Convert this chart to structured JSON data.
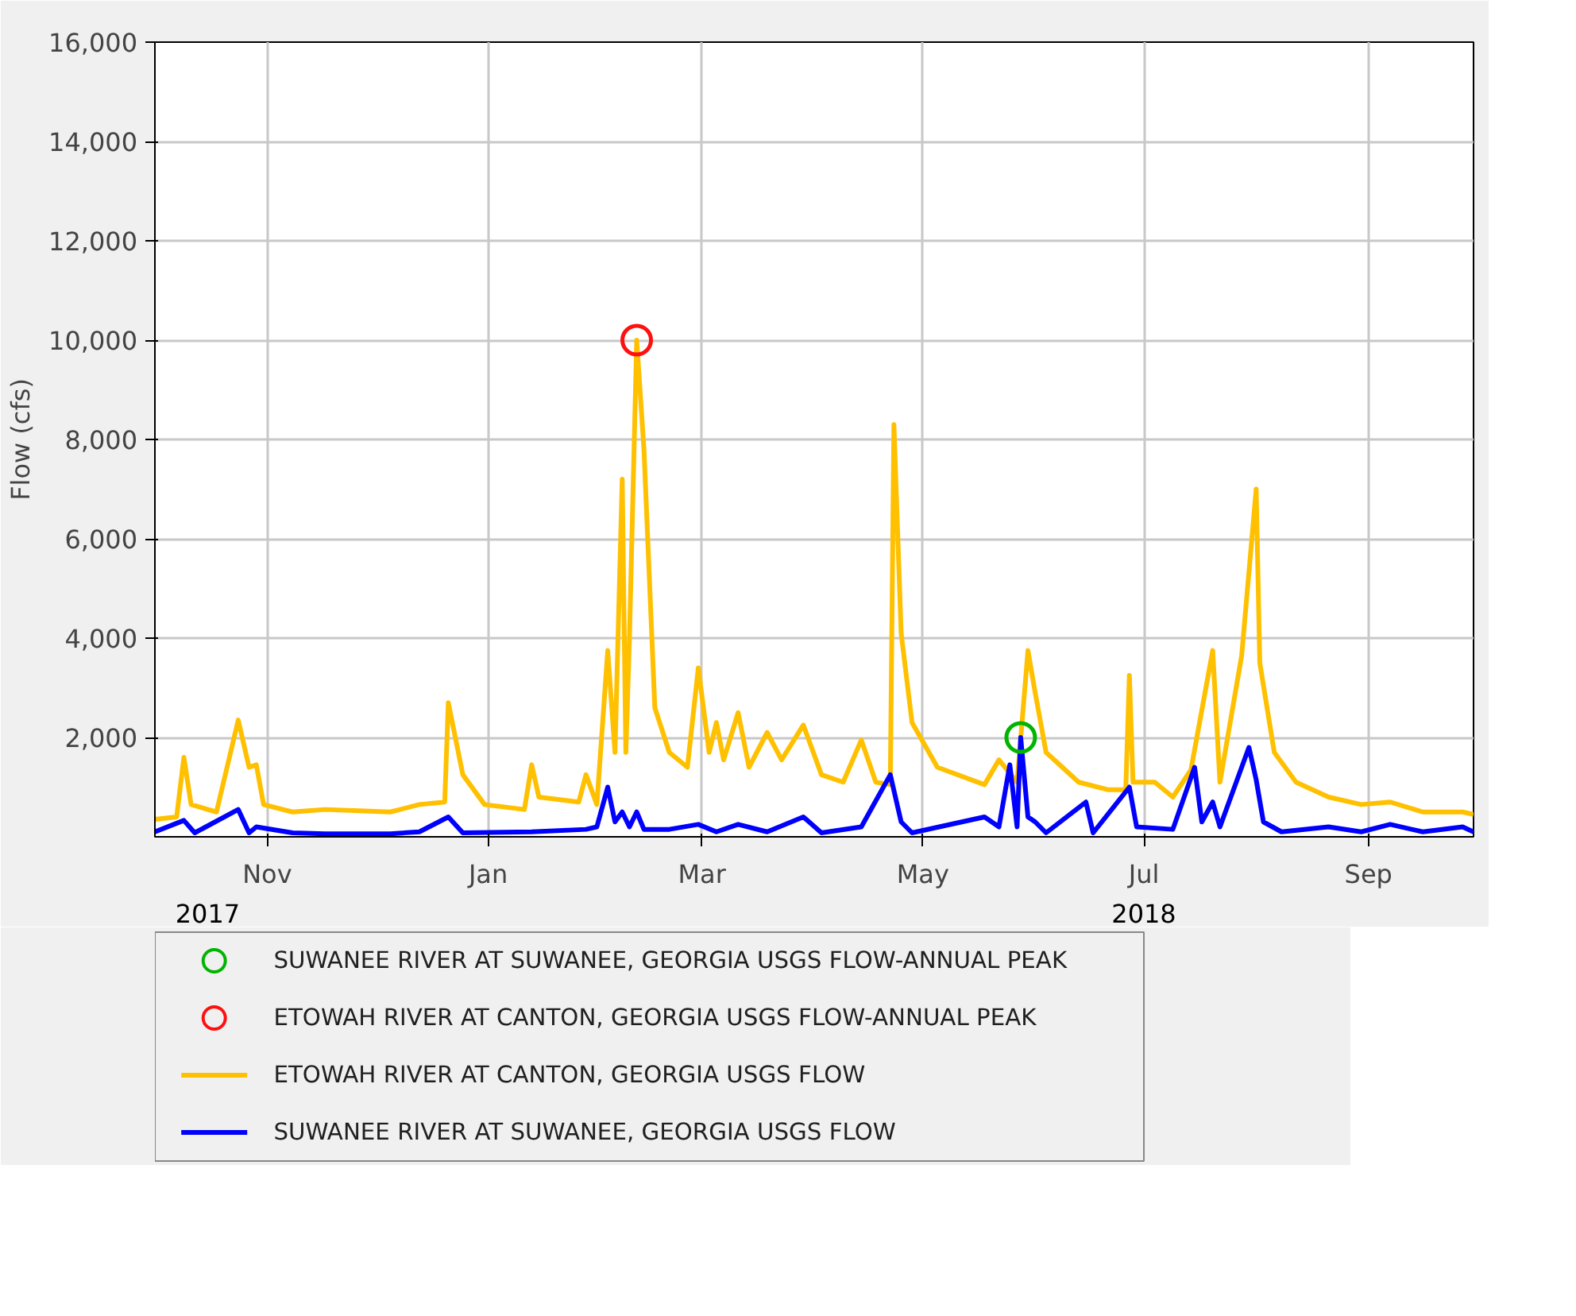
{
  "chart_data": {
    "type": "line",
    "ylabel": "Flow (cfs)",
    "xlim": [
      "2017-10-01",
      "2018-09-30"
    ],
    "xticks": [
      {
        "value": "2017-11-01",
        "label": "Nov"
      },
      {
        "value": "2018-01-01",
        "label": "Jan"
      },
      {
        "value": "2018-03-01",
        "label": "Mar"
      },
      {
        "value": "2018-05-01",
        "label": "May"
      },
      {
        "value": "2018-07-01",
        "label": "Jul"
      },
      {
        "value": "2018-09-01",
        "label": "Sep"
      }
    ],
    "ylim": [
      0,
      16000
    ],
    "yticks": [
      {
        "value": 2000,
        "label": "2,000"
      },
      {
        "value": 4000,
        "label": "4,000"
      },
      {
        "value": 6000,
        "label": "6,000"
      },
      {
        "value": 8000,
        "label": "8,000"
      },
      {
        "value": 10000,
        "label": "10,000"
      },
      {
        "value": 12000,
        "label": "12,000"
      },
      {
        "value": 14000,
        "label": "14,000"
      },
      {
        "value": 16000,
        "label": "16,000"
      }
    ],
    "annotations": [
      "2017",
      "2018"
    ],
    "grid": true,
    "legend": "bottom",
    "series": [
      {
        "name": "SUWANEE RIVER AT SUWANEE, GEORGIA USGS FLOW-ANNUAL PEAK",
        "type": "scatter",
        "marker": "circle",
        "color": "#00b400",
        "x": [
          "2018-05-28"
        ],
        "values": [
          2000
        ]
      },
      {
        "name": "ETOWAH RIVER AT CANTON, GEORGIA USGS FLOW-ANNUAL PEAK",
        "type": "scatter",
        "marker": "circle",
        "color": "#ff1010",
        "x": [
          "2018-02-11"
        ],
        "values": [
          10000
        ]
      },
      {
        "name": "ETOWAH RIVER AT CANTON, GEORGIA USGS FLOW",
        "color": "#ffc000",
        "x": [
          "2017-10-01",
          "2017-10-07",
          "2017-10-09",
          "2017-10-11",
          "2017-10-18",
          "2017-10-24",
          "2017-10-27",
          "2017-10-29",
          "2017-10-31",
          "2017-11-08",
          "2017-11-17",
          "2017-12-05",
          "2017-12-13",
          "2017-12-20",
          "2017-12-21",
          "2017-12-25",
          "2017-12-31",
          "2018-01-11",
          "2018-01-13",
          "2018-01-15",
          "2018-01-26",
          "2018-01-28",
          "2018-01-31",
          "2018-02-03",
          "2018-02-05",
          "2018-02-07",
          "2018-02-08",
          "2018-02-09",
          "2018-02-11",
          "2018-02-13",
          "2018-02-16",
          "2018-02-20",
          "2018-02-25",
          "2018-02-28",
          "2018-03-03",
          "2018-03-05",
          "2018-03-07",
          "2018-03-11",
          "2018-03-14",
          "2018-03-19",
          "2018-03-23",
          "2018-03-29",
          "2018-04-03",
          "2018-04-09",
          "2018-04-14",
          "2018-04-18",
          "2018-04-22",
          "2018-04-23",
          "2018-04-25",
          "2018-04-28",
          "2018-05-05",
          "2018-05-18",
          "2018-05-22",
          "2018-05-27",
          "2018-05-30",
          "2018-06-01",
          "2018-06-04",
          "2018-06-13",
          "2018-06-21",
          "2018-06-26",
          "2018-06-27",
          "2018-06-28",
          "2018-07-04",
          "2018-07-09",
          "2018-07-14",
          "2018-07-20",
          "2018-07-22",
          "2018-07-28",
          "2018-08-01",
          "2018-08-02",
          "2018-08-06",
          "2018-08-12",
          "2018-08-21",
          "2018-08-30",
          "2018-09-07",
          "2018-09-16",
          "2018-09-27",
          "2018-09-30"
        ],
        "values": [
          350,
          400,
          1600,
          650,
          500,
          2350,
          1400,
          1450,
          650,
          500,
          550,
          500,
          650,
          700,
          2700,
          1250,
          650,
          550,
          1450,
          800,
          700,
          1250,
          650,
          3750,
          1700,
          7200,
          1700,
          4000,
          10000,
          7800,
          2600,
          1700,
          1400,
          3400,
          1700,
          2300,
          1550,
          2500,
          1400,
          2100,
          1550,
          2250,
          1250,
          1100,
          1950,
          1100,
          1050,
          8300,
          4100,
          2300,
          1400,
          1050,
          1550,
          1100,
          3750,
          2900,
          1700,
          1100,
          950,
          950,
          3250,
          1100,
          1100,
          800,
          1350,
          3750,
          1100,
          3650,
          7000,
          3500,
          1700,
          1100,
          800,
          650,
          700,
          500,
          500,
          450
        ]
      },
      {
        "name": "SUWANEE RIVER AT SUWANEE, GEORGIA USGS FLOW",
        "color": "#0000ff",
        "x": [
          "2017-10-01",
          "2017-10-09",
          "2017-10-12",
          "2017-10-24",
          "2017-10-27",
          "2017-10-29",
          "2017-11-08",
          "2017-11-17",
          "2017-12-05",
          "2017-12-13",
          "2017-12-21",
          "2017-12-25",
          "2018-01-13",
          "2018-01-28",
          "2018-01-31",
          "2018-02-03",
          "2018-02-05",
          "2018-02-07",
          "2018-02-09",
          "2018-02-11",
          "2018-02-13",
          "2018-02-20",
          "2018-02-28",
          "2018-03-05",
          "2018-03-11",
          "2018-03-19",
          "2018-03-29",
          "2018-04-03",
          "2018-04-14",
          "2018-04-22",
          "2018-04-25",
          "2018-04-28",
          "2018-05-18",
          "2018-05-22",
          "2018-05-25",
          "2018-05-27",
          "2018-05-28",
          "2018-05-30",
          "2018-06-01",
          "2018-06-04",
          "2018-06-15",
          "2018-06-17",
          "2018-06-27",
          "2018-06-29",
          "2018-07-09",
          "2018-07-15",
          "2018-07-17",
          "2018-07-20",
          "2018-07-22",
          "2018-07-30",
          "2018-08-01",
          "2018-08-03",
          "2018-08-08",
          "2018-08-21",
          "2018-08-30",
          "2018-09-07",
          "2018-09-16",
          "2018-09-27",
          "2018-09-30"
        ],
        "values": [
          100,
          330,
          80,
          550,
          80,
          200,
          80,
          60,
          60,
          100,
          400,
          80,
          100,
          150,
          200,
          1000,
          300,
          500,
          200,
          500,
          150,
          150,
          250,
          100,
          250,
          100,
          400,
          80,
          200,
          1250,
          300,
          80,
          400,
          200,
          1450,
          200,
          2000,
          400,
          300,
          80,
          700,
          80,
          1000,
          200,
          150,
          1400,
          300,
          700,
          200,
          1800,
          1150,
          300,
          100,
          200,
          100,
          250,
          100,
          200,
          100
        ]
      }
    ]
  }
}
